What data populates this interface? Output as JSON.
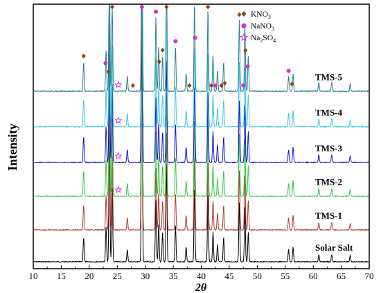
{
  "chart_data": {
    "type": "line",
    "xlabel": "2θ",
    "ylabel": "Intensity",
    "xlim": [
      10,
      70
    ],
    "xticks": [
      "10",
      "15",
      "20",
      "25",
      "30",
      "35",
      "40",
      "45",
      "50",
      "55",
      "60",
      "65",
      "70"
    ],
    "grid": false,
    "legend_placement": "top-right",
    "legend": [
      {
        "label_main": "KNO",
        "label_sub": "3",
        "label_tail": "",
        "marker": "diamond",
        "color": "#8B4513"
      },
      {
        "label_main": "NaNO",
        "label_sub": "3",
        "label_tail": "",
        "marker": "circle",
        "color": "#CC33CC"
      },
      {
        "label_main": "Na",
        "label_sub": "2",
        "label_tail": "SO",
        "label_sub2": "4",
        "marker": "star",
        "color": "#CC33CC"
      }
    ],
    "peaks": [
      {
        "x": 19.0,
        "h": 0.1
      },
      {
        "x": 23.0,
        "h": 0.14
      },
      {
        "x": 23.6,
        "h": 0.55
      },
      {
        "x": 24.1,
        "h": 0.3
      },
      {
        "x": 26.8,
        "h": 0.05
      },
      {
        "x": 29.4,
        "h": 1.0
      },
      {
        "x": 31.9,
        "h": 0.25
      },
      {
        "x": 32.4,
        "h": 0.15
      },
      {
        "x": 33.1,
        "h": 0.12
      },
      {
        "x": 33.8,
        "h": 0.4
      },
      {
        "x": 35.4,
        "h": 0.15
      },
      {
        "x": 37.3,
        "h": 0.06
      },
      {
        "x": 38.8,
        "h": 0.3
      },
      {
        "x": 41.2,
        "h": 0.28
      },
      {
        "x": 42.1,
        "h": 0.12
      },
      {
        "x": 42.9,
        "h": 0.07
      },
      {
        "x": 44.0,
        "h": 0.1
      },
      {
        "x": 46.8,
        "h": 0.24
      },
      {
        "x": 47.8,
        "h": 0.22
      },
      {
        "x": 48.4,
        "h": 0.12
      },
      {
        "x": 55.6,
        "h": 0.05
      },
      {
        "x": 56.4,
        "h": 0.06
      },
      {
        "x": 61.0,
        "h": 0.03
      },
      {
        "x": 63.3,
        "h": 0.03
      },
      {
        "x": 66.6,
        "h": 0.025
      }
    ],
    "series": [
      {
        "name": "Solar Salt",
        "color": "#000000",
        "offset": 0.0,
        "scale": 1.0
      },
      {
        "name": "TMS-1",
        "color": "#B03A2E",
        "offset": 0.85,
        "scale": 1.0
      },
      {
        "name": "TMS-2",
        "color": "#2ECC40",
        "offset": 1.75,
        "scale": 1.05
      },
      {
        "name": "TMS-3",
        "color": "#1414C8",
        "offset": 2.65,
        "scale": 1.05
      },
      {
        "name": "TMS-4",
        "color": "#3CC8E6",
        "offset": 3.6,
        "scale": 1.1
      },
      {
        "name": "TMS-5",
        "color": "#2A7F8F",
        "offset": 4.55,
        "scale": 1.2
      }
    ],
    "markers": [
      {
        "type": "diamond",
        "x": 19.0,
        "color": "#8B4513"
      },
      {
        "type": "diamond",
        "x": 23.4,
        "color": "#8B4513"
      },
      {
        "type": "diamond",
        "x": 24.1,
        "color": "#8B4513"
      },
      {
        "type": "circle",
        "x": 22.9,
        "color": "#CC33CC"
      },
      {
        "type": "diamond",
        "x": 27.8,
        "color": "#8B4513"
      },
      {
        "type": "circle",
        "x": 29.4,
        "color": "#CC33CC"
      },
      {
        "type": "circle",
        "x": 31.9,
        "color": "#CC33CC"
      },
      {
        "type": "diamond",
        "x": 32.5,
        "color": "#8B4513"
      },
      {
        "type": "diamond",
        "x": 33.1,
        "color": "#8B4513"
      },
      {
        "type": "diamond",
        "x": 33.8,
        "color": "#8B4513"
      },
      {
        "type": "circle",
        "x": 35.4,
        "color": "#CC33CC"
      },
      {
        "type": "diamond",
        "x": 37.9,
        "color": "#8B4513"
      },
      {
        "type": "circle",
        "x": 38.9,
        "color": "#CC33CC"
      },
      {
        "type": "diamond",
        "x": 41.2,
        "color": "#8B4513"
      },
      {
        "type": "diamond",
        "x": 41.8,
        "color": "#8B4513"
      },
      {
        "type": "circle",
        "x": 42.5,
        "color": "#CC33CC"
      },
      {
        "type": "diamond",
        "x": 43.6,
        "color": "#8B4513"
      },
      {
        "type": "diamond",
        "x": 44.2,
        "color": "#8B4513"
      },
      {
        "type": "diamond",
        "x": 46.8,
        "color": "#8B4513"
      },
      {
        "type": "circle",
        "x": 47.5,
        "color": "#CC33CC"
      },
      {
        "type": "diamond",
        "x": 47.9,
        "color": "#8B4513"
      },
      {
        "type": "circle",
        "x": 48.3,
        "color": "#CC33CC"
      },
      {
        "type": "circle",
        "x": 55.6,
        "color": "#CC33CC"
      },
      {
        "type": "diamond",
        "x": 56.2,
        "color": "#8B4513"
      }
    ],
    "star_markers": [
      {
        "series": "TMS-5",
        "x": 25.2
      },
      {
        "series": "TMS-4",
        "x": 25.2
      },
      {
        "series": "TMS-3",
        "x": 25.2
      },
      {
        "series": "TMS-2",
        "x": 25.2
      }
    ]
  }
}
